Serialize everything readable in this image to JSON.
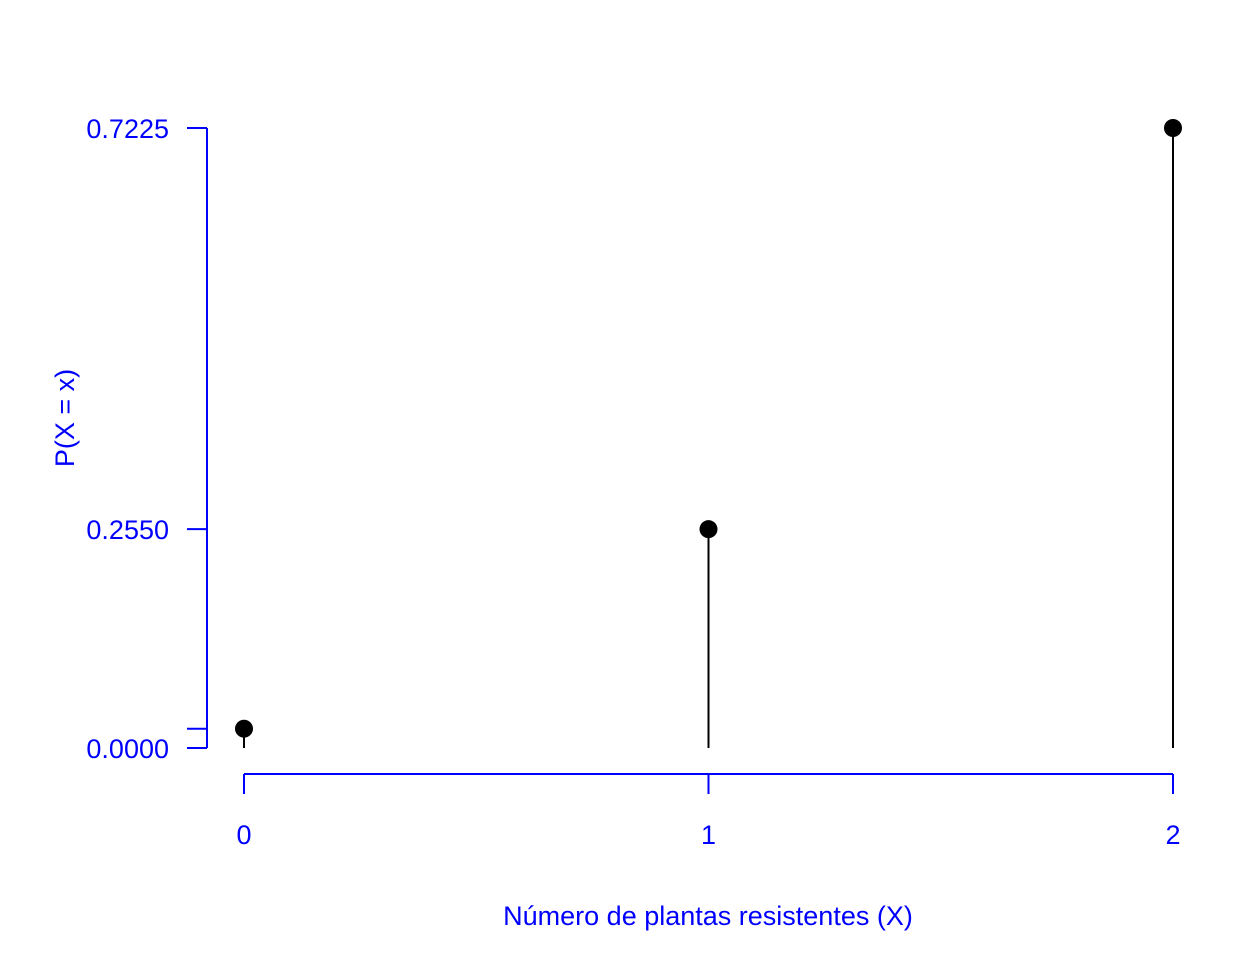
{
  "chart_data": {
    "type": "scatter",
    "x": [
      0,
      1,
      2
    ],
    "y": [
      0.0225,
      0.255,
      0.7225
    ],
    "xlabel": "Número de plantas resistentes (X)",
    "ylabel": "P(X = x)",
    "x_tick_labels": [
      "0",
      "1",
      "2"
    ],
    "y_tick_labels": [
      "0.0000",
      "0.2550",
      "0.7225"
    ],
    "y_tick_values": [
      0.0,
      0.255,
      0.7225
    ],
    "extra_y_tick_values": [
      0.0225
    ],
    "xlim": [
      0,
      2
    ],
    "ylim": [
      0,
      0.7225
    ],
    "grid": false,
    "colors": {
      "axes": "#0000ff",
      "points": "#000000"
    }
  }
}
